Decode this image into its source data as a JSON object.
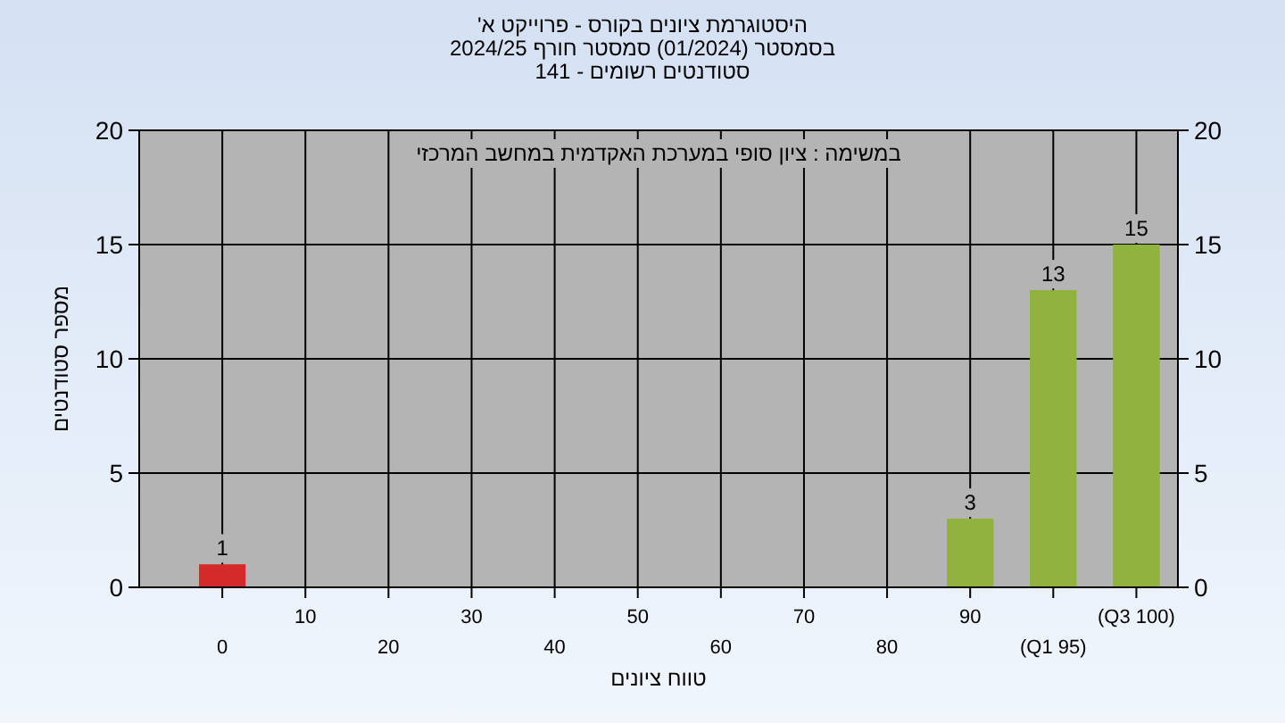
{
  "chart_data": {
    "type": "bar",
    "title": "היסטוגרמת ציונים בקורס - פרוייקט א'",
    "subtitle": "בסמסטר  (01/2024)  סמסטר חורף 2024/25\nסטודנטים רשומים - 141",
    "xlabel": "טווח ציונים",
    "ylabel": "מספר סטודנטים",
    "annotations": [
      "במשימה : ציון סופי במערכת האקדמית במחשב המרכזי"
    ],
    "categories": [
      "0",
      "10",
      "20",
      "30",
      "40",
      "50",
      "60",
      "70",
      "80",
      "90",
      "(Q1 95)",
      "(Q3 100)"
    ],
    "values": [
      1,
      0,
      0,
      0,
      0,
      0,
      0,
      0,
      0,
      3,
      13,
      15
    ],
    "value_labels": [
      "1",
      null,
      null,
      null,
      null,
      null,
      null,
      null,
      null,
      "3",
      "13",
      "15"
    ],
    "colors": [
      "#d42a2a",
      "#8fb33c",
      "#8fb33c",
      "#8fb33c",
      "#8fb33c",
      "#8fb33c",
      "#8fb33c",
      "#8fb33c",
      "#8fb33c",
      "#8fb33c",
      "#8fb33c",
      "#8fb33c"
    ],
    "ylim": [
      0,
      20
    ],
    "yticks": [
      0,
      5,
      10,
      15,
      20
    ],
    "y2lim": [
      0,
      20
    ],
    "y2ticks": [
      0,
      5,
      10,
      15,
      20
    ],
    "grid": true
  }
}
